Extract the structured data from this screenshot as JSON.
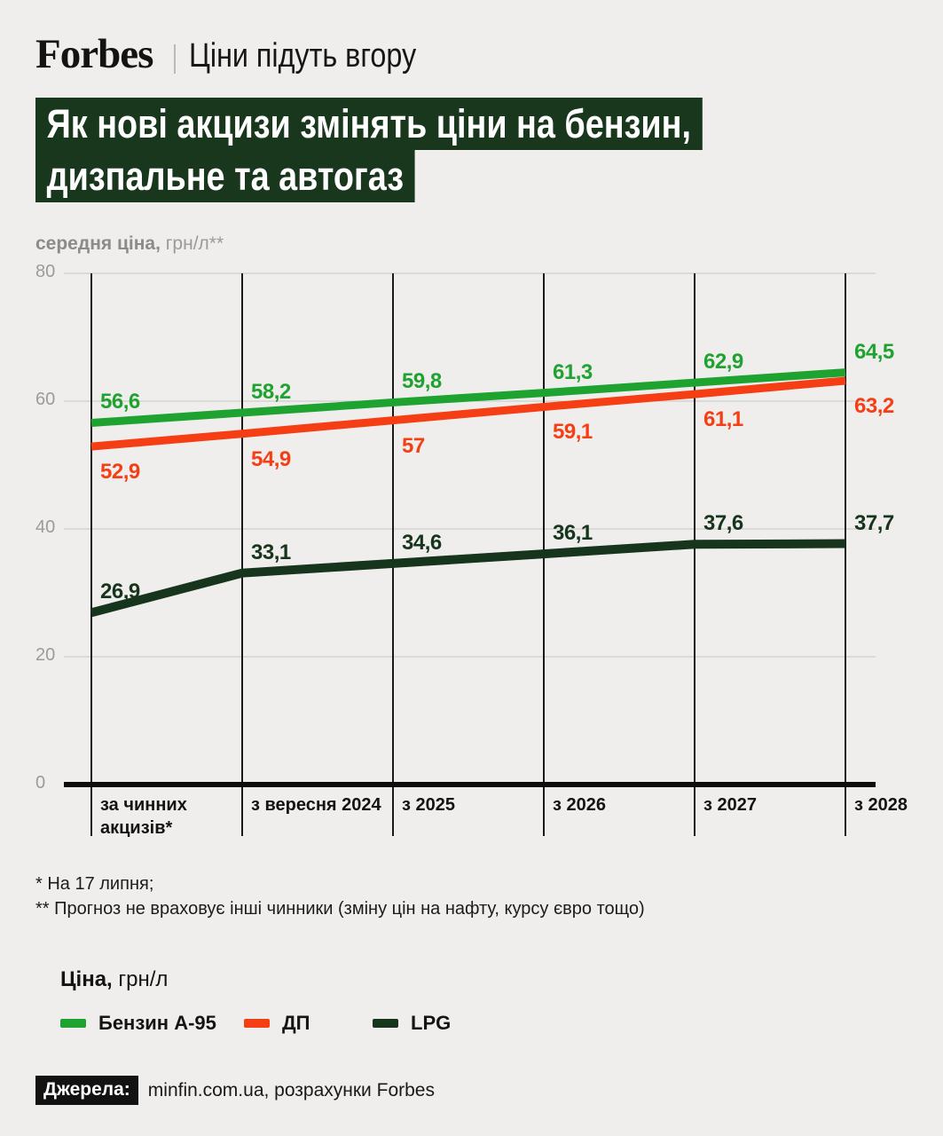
{
  "header": {
    "brand": "Forbes",
    "tagline": "Ціни підуть вгору"
  },
  "title": {
    "line1": "Як нові акцизи змінять ціни на бензин,",
    "line2": "дизпальне та автогаз"
  },
  "y_axis_title": {
    "bold": "середня ціна,",
    "unit": " грн/л**"
  },
  "chart_data": {
    "type": "line",
    "title": "Як нові акцизи змінять ціни на бензин, дизпальне та автогаз",
    "ylabel": "середня ціна, грн/л**",
    "categories": [
      "за чинних акцизів*",
      "з вересня 2024",
      "з 2025",
      "з 2026",
      "з 2027",
      "з 2028"
    ],
    "categories_display": [
      [
        "за чинних",
        "акцизів*"
      ],
      [
        "з вересня 2024"
      ],
      [
        "з 2025"
      ],
      [
        "з 2026"
      ],
      [
        "з 2027"
      ],
      [
        "з 2028"
      ]
    ],
    "series": [
      {
        "name": "Бензин А-95",
        "color": "#1fa330",
        "label_side": "above",
        "values": [
          56.6,
          58.2,
          59.8,
          61.3,
          62.9,
          64.5
        ],
        "labels": [
          "56,6",
          "58,2",
          "59,8",
          "61,3",
          "62,9",
          "64,5"
        ]
      },
      {
        "name": "ДП",
        "color": "#f63e14",
        "label_side": "below",
        "values": [
          52.9,
          54.9,
          57,
          59.1,
          61.1,
          63.2
        ],
        "labels": [
          "52,9",
          "54,9",
          "57",
          "59,1",
          "61,1",
          "63,2"
        ]
      },
      {
        "name": "LPG",
        "color": "#17351c",
        "label_side": "above",
        "values": [
          26.9,
          33.1,
          34.6,
          36.1,
          37.6,
          37.7
        ],
        "labels": [
          "26,9",
          "33,1",
          "34,6",
          "36,1",
          "37,6",
          "37,7"
        ]
      }
    ],
    "yticks": [
      0,
      20,
      40,
      60,
      80
    ],
    "ylim": [
      0,
      80
    ],
    "grid": true,
    "legend_position": "bottom"
  },
  "footnotes": [
    "* На 17 липня;",
    "** Прогноз не враховує інші чинники (зміну цін на нафту, курсу євро тощо)"
  ],
  "legend": {
    "title_bold": "Ціна,",
    "title_unit": " грн/л",
    "items": [
      {
        "label": "Бензин А-95",
        "color": "#1fa330"
      },
      {
        "label": "ДП",
        "color": "#f63e14"
      },
      {
        "label": "LPG",
        "color": "#17351c"
      }
    ]
  },
  "source": {
    "label": "Джерела:",
    "text": "minfin.com.ua, розрахунки Forbes"
  },
  "colors": {
    "background": "#efeeec",
    "title_background": "#18371d",
    "grid": "#c6c6c6",
    "axis": "#141414",
    "tick_text": "#9b9b9b"
  }
}
